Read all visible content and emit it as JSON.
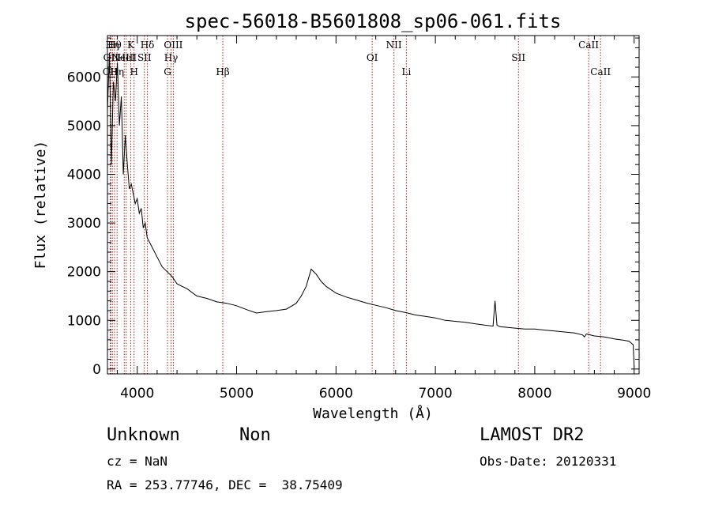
{
  "chart_data": {
    "type": "line",
    "title": "spec-56018-B5601808_sp06-061.fits",
    "xlabel": "Wavelength (Å)",
    "ylabel": "Flux (relative)",
    "xlim": [
      3700,
      9050
    ],
    "ylim": [
      -100,
      6850
    ],
    "xticks": [
      4000,
      5000,
      6000,
      7000,
      8000,
      9000
    ],
    "yticks": [
      0,
      1000,
      2000,
      3000,
      4000,
      5000,
      6000
    ],
    "grid": false,
    "series": [
      {
        "x": [
          3700,
          3720,
          3740,
          3760,
          3780,
          3800,
          3820,
          3840,
          3860,
          3880,
          3900,
          3920,
          3940,
          3960,
          3980,
          4000,
          4020,
          4040,
          4060,
          4080,
          4100,
          4150,
          4200,
          4250,
          4300,
          4350,
          4400,
          4450,
          4500,
          4600,
          4700,
          4800,
          4900,
          5000,
          5100,
          5200,
          5300,
          5400,
          5500,
          5600,
          5650,
          5700,
          5750,
          5800,
          5850,
          5900,
          6000,
          6100,
          6200,
          6300,
          6400,
          6500,
          6600,
          6700,
          6800,
          6900,
          7000,
          7100,
          7200,
          7300,
          7400,
          7500,
          7580,
          7600,
          7620,
          7650,
          7700,
          7800,
          7900,
          8000,
          8100,
          8200,
          8300,
          8400,
          8480,
          8500,
          8520,
          8600,
          8700,
          8800,
          8900,
          8950,
          8990,
          9000
        ],
        "y": [
          5300,
          6500,
          4200,
          5900,
          5500,
          6300,
          5000,
          5600,
          4000,
          4800,
          4200,
          3700,
          3800,
          3600,
          3400,
          3500,
          3200,
          3300,
          2900,
          3000,
          2700,
          2500,
          2300,
          2100,
          2000,
          1900,
          1750,
          1700,
          1650,
          1500,
          1450,
          1380,
          1350,
          1300,
          1220,
          1150,
          1180,
          1200,
          1230,
          1350,
          1500,
          1700,
          2050,
          1950,
          1800,
          1700,
          1560,
          1480,
          1420,
          1360,
          1310,
          1260,
          1200,
          1160,
          1110,
          1080,
          1050,
          1000,
          980,
          960,
          930,
          900,
          880,
          1400,
          900,
          870,
          860,
          840,
          820,
          820,
          800,
          780,
          760,
          740,
          700,
          660,
          720,
          680,
          660,
          620,
          590,
          570,
          500,
          50
        ]
      }
    ],
    "lines": [
      {
        "x": 3728,
        "label": "OII",
        "row": 3
      },
      {
        "x": 3734,
        "label": "OII",
        "row": 2
      },
      {
        "x": 3750,
        "label": "Hη",
        "row": 1
      },
      {
        "x": 3771,
        "label": "Hθ",
        "row": 1
      },
      {
        "x": 3797,
        "label": "Hη",
        "row": 3
      },
      {
        "x": 3869,
        "label": "NeIII",
        "row": 2
      },
      {
        "x": 3889,
        "label": "HeI",
        "row": 2
      },
      {
        "x": 3934,
        "label": "K",
        "row": 1
      },
      {
        "x": 3968,
        "label": "H",
        "row": 3
      },
      {
        "x": 4072,
        "label": "SII",
        "row": 2
      },
      {
        "x": 4102,
        "label": "Hδ",
        "row": 1
      },
      {
        "x": 4305,
        "label": "G",
        "row": 3
      },
      {
        "x": 4340,
        "label": "Hγ",
        "row": 2
      },
      {
        "x": 4363,
        "label": "OIII",
        "row": 1
      },
      {
        "x": 4861,
        "label": "Hβ",
        "row": 3
      },
      {
        "x": 6364,
        "label": "OI",
        "row": 2
      },
      {
        "x": 6583,
        "label": "NII",
        "row": 1
      },
      {
        "x": 6708,
        "label": "Li",
        "row": 3
      },
      {
        "x": 7836,
        "label": "SII",
        "row": 2
      },
      {
        "x": 8542,
        "label": "CaII",
        "row": 1
      },
      {
        "x": 8662,
        "label": "CaII",
        "row": 3
      }
    ]
  },
  "info": {
    "object_class": "Unknown",
    "subclass": "Non",
    "survey": "LAMOST DR2",
    "redshift": "cz = NaN",
    "obs_date": "Obs-Date: 20120331",
    "coords": "RA = 253.77746, DEC =  38.75409"
  },
  "colors": {
    "axes": "#000000",
    "spectrum": "#000000",
    "line_markers": "#b22222"
  }
}
